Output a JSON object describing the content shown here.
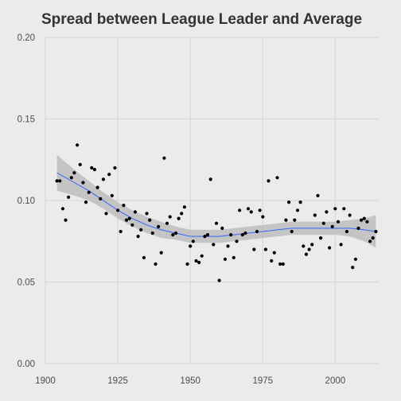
{
  "chart_data": {
    "type": "scatter",
    "title": "Spread between League Leader and Average",
    "xlabel": "",
    "ylabel": "",
    "xlim": [
      1900,
      2015
    ],
    "ylim": [
      0,
      0.2
    ],
    "x_ticks": [
      1900,
      1925,
      1950,
      1975,
      2000
    ],
    "x_tick_labels": [
      "1900",
      "1925",
      "1950",
      "1975",
      "2000"
    ],
    "y_ticks": [
      0,
      0.05,
      0.1,
      0.15,
      0.2
    ],
    "y_tick_labels": [
      "0.00",
      "0.05",
      "0.10",
      "0.15",
      "0.20"
    ],
    "grid": true,
    "legend": "none",
    "colors": {
      "background": "#ebebeb",
      "points": "#000000",
      "smooth_line": "#3366ff",
      "confidence_band": "#bdbdbd",
      "grid": "#d6d6d6"
    },
    "points": [
      [
        1904,
        0.112
      ],
      [
        1905,
        0.112
      ],
      [
        1906,
        0.095
      ],
      [
        1907,
        0.088
      ],
      [
        1908,
        0.102
      ],
      [
        1909,
        0.114
      ],
      [
        1910,
        0.117
      ],
      [
        1911,
        0.134
      ],
      [
        1912,
        0.122
      ],
      [
        1913,
        0.111
      ],
      [
        1914,
        0.099
      ],
      [
        1915,
        0.105
      ],
      [
        1916,
        0.12
      ],
      [
        1917,
        0.119
      ],
      [
        1918,
        0.108
      ],
      [
        1919,
        0.101
      ],
      [
        1920,
        0.113
      ],
      [
        1921,
        0.092
      ],
      [
        1922,
        0.116
      ],
      [
        1923,
        0.103
      ],
      [
        1924,
        0.12
      ],
      [
        1925,
        0.094
      ],
      [
        1926,
        0.081
      ],
      [
        1927,
        0.097
      ],
      [
        1928,
        0.088
      ],
      [
        1929,
        0.089
      ],
      [
        1930,
        0.085
      ],
      [
        1931,
        0.093
      ],
      [
        1932,
        0.078
      ],
      [
        1933,
        0.082
      ],
      [
        1934,
        0.065
      ],
      [
        1935,
        0.092
      ],
      [
        1936,
        0.088
      ],
      [
        1937,
        0.08
      ],
      [
        1938,
        0.061
      ],
      [
        1939,
        0.084
      ],
      [
        1940,
        0.068
      ],
      [
        1941,
        0.126
      ],
      [
        1942,
        0.086
      ],
      [
        1943,
        0.09
      ],
      [
        1944,
        0.079
      ],
      [
        1945,
        0.08
      ],
      [
        1946,
        0.089
      ],
      [
        1947,
        0.092
      ],
      [
        1948,
        0.096
      ],
      [
        1949,
        0.061
      ],
      [
        1950,
        0.072
      ],
      [
        1951,
        0.075
      ],
      [
        1952,
        0.063
      ],
      [
        1953,
        0.062
      ],
      [
        1954,
        0.066
      ],
      [
        1955,
        0.078
      ],
      [
        1956,
        0.079
      ],
      [
        1957,
        0.113
      ],
      [
        1958,
        0.073
      ],
      [
        1959,
        0.086
      ],
      [
        1960,
        0.051
      ],
      [
        1961,
        0.083
      ],
      [
        1962,
        0.064
      ],
      [
        1963,
        0.072
      ],
      [
        1964,
        0.079
      ],
      [
        1965,
        0.065
      ],
      [
        1966,
        0.075
      ],
      [
        1967,
        0.094
      ],
      [
        1968,
        0.079
      ],
      [
        1969,
        0.08
      ],
      [
        1970,
        0.095
      ],
      [
        1971,
        0.093
      ],
      [
        1972,
        0.07
      ],
      [
        1973,
        0.081
      ],
      [
        1974,
        0.094
      ],
      [
        1975,
        0.09
      ],
      [
        1976,
        0.07
      ],
      [
        1977,
        0.112
      ],
      [
        1978,
        0.063
      ],
      [
        1979,
        0.068
      ],
      [
        1980,
        0.114
      ],
      [
        1981,
        0.061
      ],
      [
        1982,
        0.061
      ],
      [
        1983,
        0.088
      ],
      [
        1984,
        0.099
      ],
      [
        1985,
        0.081
      ],
      [
        1986,
        0.088
      ],
      [
        1987,
        0.094
      ],
      [
        1988,
        0.099
      ],
      [
        1989,
        0.072
      ],
      [
        1990,
        0.067
      ],
      [
        1991,
        0.07
      ],
      [
        1992,
        0.073
      ],
      [
        1993,
        0.091
      ],
      [
        1994,
        0.103
      ],
      [
        1995,
        0.077
      ],
      [
        1996,
        0.086
      ],
      [
        1997,
        0.093
      ],
      [
        1998,
        0.071
      ],
      [
        1999,
        0.084
      ],
      [
        2000,
        0.095
      ],
      [
        2001,
        0.087
      ],
      [
        2002,
        0.073
      ],
      [
        2003,
        0.095
      ],
      [
        2004,
        0.081
      ],
      [
        2005,
        0.091
      ],
      [
        2006,
        0.059
      ],
      [
        2007,
        0.064
      ],
      [
        2008,
        0.083
      ],
      [
        2009,
        0.088
      ],
      [
        2010,
        0.089
      ],
      [
        2011,
        0.087
      ],
      [
        2012,
        0.075
      ],
      [
        2013,
        0.077
      ],
      [
        2014,
        0.081
      ]
    ],
    "smooth": {
      "x": [
        1904,
        1910,
        1915,
        1920,
        1925,
        1930,
        1935,
        1940,
        1945,
        1950,
        1955,
        1960,
        1965,
        1970,
        1975,
        1980,
        1985,
        1990,
        1995,
        2000,
        2005,
        2010,
        2014
      ],
      "y": [
        0.117,
        0.111,
        0.106,
        0.1,
        0.094,
        0.089,
        0.085,
        0.082,
        0.08,
        0.078,
        0.078,
        0.078,
        0.079,
        0.08,
        0.081,
        0.082,
        0.083,
        0.083,
        0.083,
        0.083,
        0.083,
        0.082,
        0.081
      ],
      "se_half_width": [
        0.011,
        0.008,
        0.006,
        0.005,
        0.005,
        0.005,
        0.005,
        0.005,
        0.004,
        0.004,
        0.004,
        0.004,
        0.004,
        0.004,
        0.004,
        0.004,
        0.004,
        0.004,
        0.004,
        0.004,
        0.005,
        0.007,
        0.01
      ]
    }
  }
}
